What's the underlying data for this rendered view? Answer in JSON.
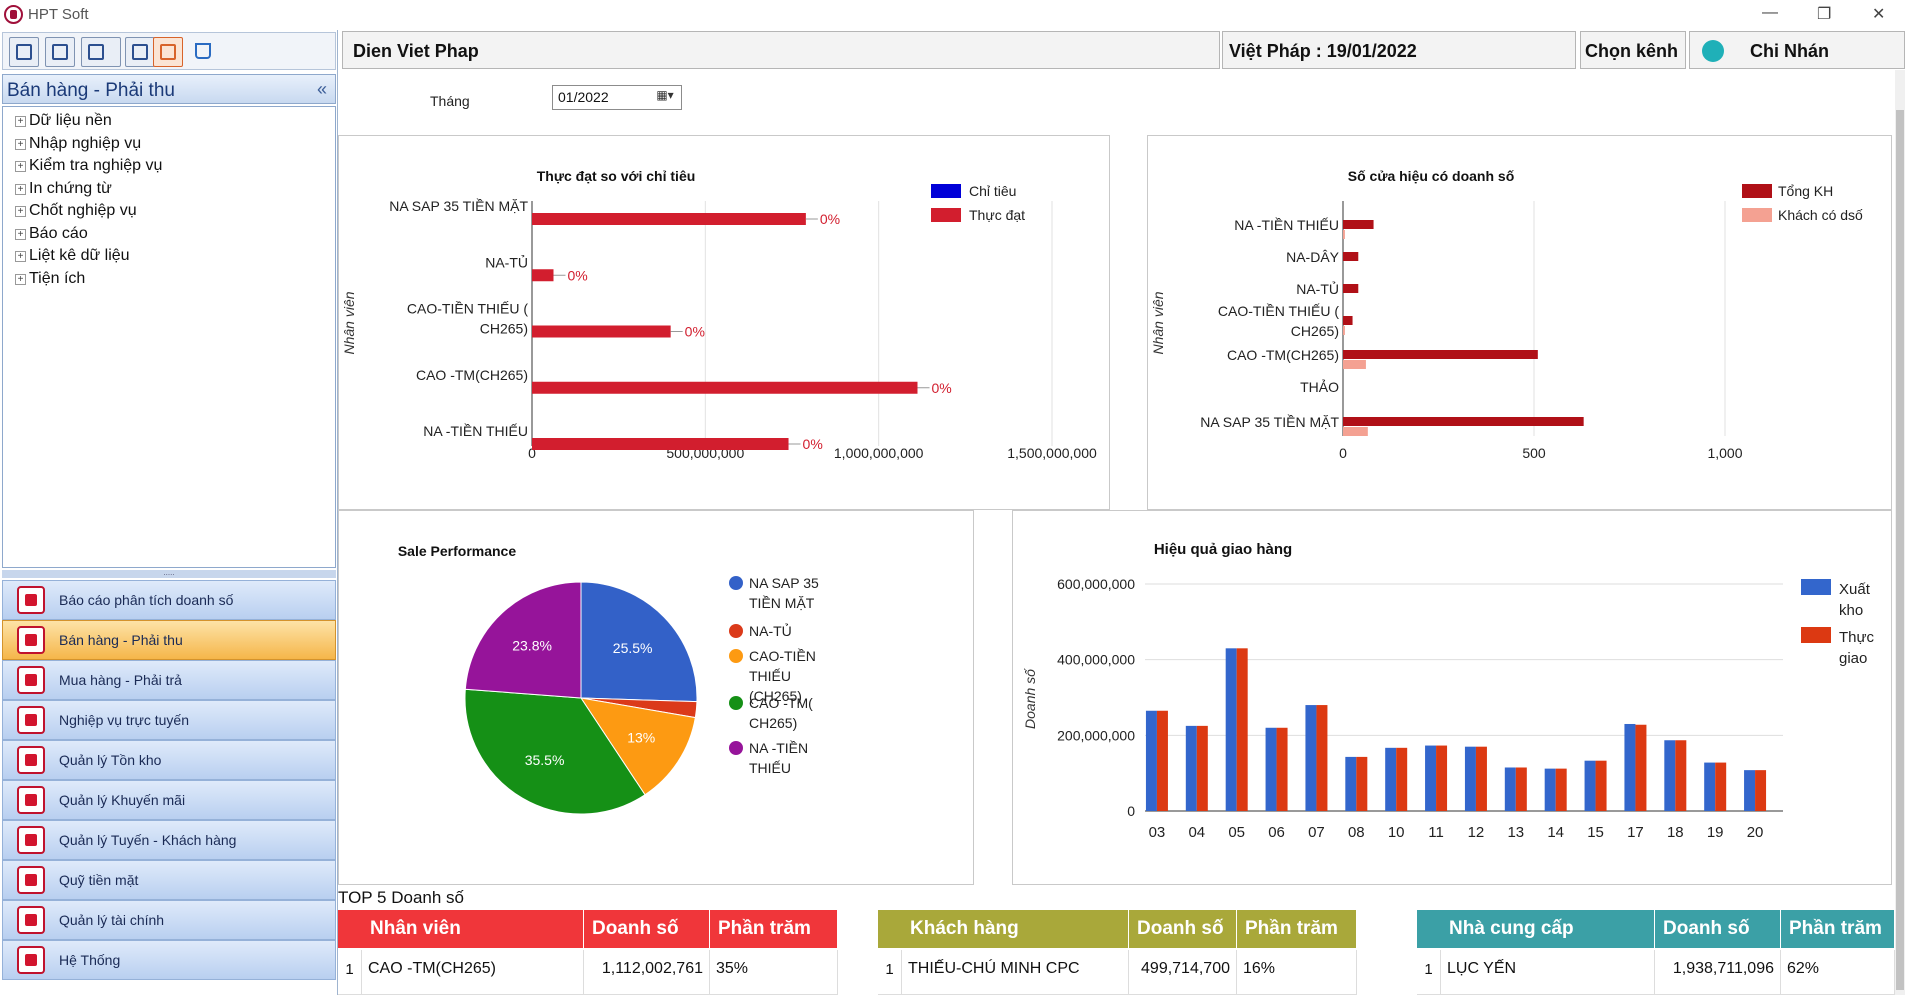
{
  "window": {
    "title": "HPT Soft",
    "minimize": "—",
    "restore": "❐",
    "close": "✕"
  },
  "toolbar": {
    "icons": [
      "checklist-icon",
      "printer-icon",
      "truck-icon",
      "tablet-icon",
      "money-icon",
      "cart-icon"
    ]
  },
  "sidebar": {
    "panel_title": "Bán hàng - Phải thu",
    "collapse_glyph": "«",
    "tree": [
      "Dữ liệu nền",
      "Nhập nghiệp vụ",
      "Kiểm tra nghiệp vụ",
      "In chứng từ",
      "Chốt nghiệp vụ",
      "Báo cáo",
      "Liệt kê dữ liệu",
      "Tiện ích"
    ],
    "nav": [
      "Báo cáo phân tích doanh số",
      "Bán hàng - Phải thu",
      "Mua hàng - Phải trả",
      "Nghiệp vụ trực tuyến",
      "Quản lý Tồn kho",
      "Quản lý Khuyến mãi",
      "Quản lý Tuyến - Khách hàng",
      "Quỹ tiền mặt",
      "Quản lý tài chính",
      "Hệ Thống"
    ],
    "active_nav_index": 1
  },
  "header": {
    "company": "Dien Viet Phap",
    "date_info": "Việt Pháp : 19/01/2022",
    "channel_button": "Chọn kênh",
    "branch": "Chi Nhán"
  },
  "filter": {
    "label": "Tháng",
    "value": "01/2022",
    "dropdown_glyph": "▦▾"
  },
  "chart_data": [
    {
      "type": "bar",
      "orientation": "horizontal",
      "title": "Thực đạt so với chỉ tiêu",
      "ylabel": "Nhân viên",
      "categories": [
        "NA SAP 35 TIỀN MẶT",
        "NA-TỦ",
        "CAO-TIỀN THIẾU ( CH265)",
        "CAO -TM(CH265)",
        "NA -TIỀN THIẾU"
      ],
      "series": [
        {
          "name": "Chỉ tiêu",
          "color": "#0000d8",
          "values": [
            0,
            0,
            0,
            0,
            0
          ]
        },
        {
          "name": "Thực đạt",
          "color": "#d21e2e",
          "values": [
            790000000,
            62000000,
            400000000,
            1112002761,
            740000000
          ]
        }
      ],
      "data_labels": [
        "0%",
        "0%",
        "0%",
        "0%",
        "0%"
      ],
      "xticks": [
        "0",
        "500,000,000",
        "1,000,000,000",
        "1,500,000,000"
      ],
      "xlim": [
        0,
        1500000000
      ]
    },
    {
      "type": "bar",
      "orientation": "horizontal",
      "title": "Số cửa hiệu có doanh số",
      "ylabel": "Nhân viên",
      "categories": [
        "NA -TIỀN THIẾU",
        "NA-DÂY",
        "NA-TỦ",
        "CAO-TIỀN THIẾU ( CH265)",
        "CAO -TM(CH265)",
        "THẢO",
        "NA SAP 35 TIỀN MẶT"
      ],
      "series": [
        {
          "name": "Tổng KH",
          "color": "#b01017",
          "values": [
            80,
            40,
            40,
            25,
            510,
            0,
            630
          ]
        },
        {
          "name": "Khách có dsố",
          "color": "#f4a192",
          "values": [
            5,
            0,
            0,
            5,
            60,
            0,
            65
          ]
        }
      ],
      "xticks": [
        "0",
        "500",
        "1,000"
      ],
      "xlim": [
        0,
        1000
      ]
    },
    {
      "type": "pie",
      "title": "Sale Performance",
      "labels": [
        "NA SAP 35 TIỀN MẶT",
        "NA-TỦ",
        "CAO-TIỀN THIẾU (CH265)",
        "CAO -TM( CH265)",
        "NA -TIỀN THIẾU"
      ],
      "values": [
        25.5,
        2.2,
        13,
        35.5,
        23.8
      ],
      "value_labels": [
        "25.5%",
        "",
        "13%",
        "35.5%",
        "23.8%"
      ],
      "colors": [
        "#3361c8",
        "#db3a1a",
        "#fd9a12",
        "#159016",
        "#96149a"
      ]
    },
    {
      "type": "bar",
      "title": "Hiệu quả giao hàng",
      "ylabel": "Doanh số",
      "categories": [
        "03",
        "04",
        "05",
        "06",
        "07",
        "08",
        "10",
        "11",
        "12",
        "13",
        "14",
        "15",
        "17",
        "18",
        "19",
        "20"
      ],
      "series": [
        {
          "name": "Xuất kho",
          "color": "#3366cc",
          "values": [
            265000000,
            225000000,
            430000000,
            220000000,
            280000000,
            143000000,
            167000000,
            173000000,
            170000000,
            115000000,
            112000000,
            133000000,
            230000000,
            187000000,
            128000000,
            108000000
          ]
        },
        {
          "name": "Thực giao",
          "color": "#dc3912",
          "values": [
            265000000,
            225000000,
            430000000,
            220000000,
            280000000,
            143000000,
            167000000,
            173000000,
            170000000,
            115000000,
            112000000,
            133000000,
            228000000,
            187000000,
            128000000,
            108000000
          ]
        }
      ],
      "yticks": [
        "0",
        "200,000,000",
        "400,000,000",
        "600,000,000"
      ],
      "ylim": [
        0,
        600000000
      ]
    }
  ],
  "top5": {
    "title": "TOP 5 Doanh số",
    "tables": [
      {
        "headers": [
          "Nhân viên",
          "Doanh số",
          "Phần trăm"
        ],
        "header_color": "#f0363a",
        "rows": [
          {
            "no": "1",
            "name": "CAO -TM(CH265)",
            "sales": "1,112,002,761",
            "pct": "35%"
          }
        ]
      },
      {
        "headers": [
          "Khách hàng",
          "Doanh số",
          "Phần trăm"
        ],
        "header_color": "#a9a83a",
        "rows": [
          {
            "no": "1",
            "name": "THIẾU-CHÚ MINH CPC",
            "sales": "499,714,700",
            "pct": "16%"
          }
        ]
      },
      {
        "headers": [
          "Nhà cung cấp",
          "Doanh số",
          "Phần trăm"
        ],
        "header_color": "#3ba0a6",
        "rows": [
          {
            "no": "1",
            "name": "LỤC YẾN",
            "sales": "1,938,711,096",
            "pct": "62%"
          }
        ]
      }
    ]
  }
}
